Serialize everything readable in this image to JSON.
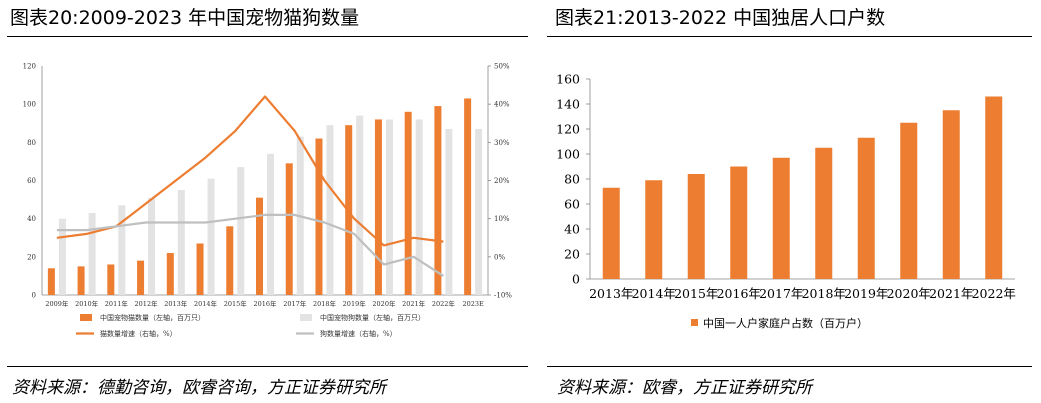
{
  "left": {
    "title": "图表20:2009-2023 年中国宠物猫狗数量",
    "source": "资料来源：德勤咨询，欧睿咨询，方正证券研究所",
    "chart_data": {
      "type": "bar",
      "categories": [
        "2009年",
        "2010年",
        "2011年",
        "2012年",
        "2013年",
        "2014年",
        "2015年",
        "2016年",
        "2017年",
        "2018年",
        "2019年",
        "2020年",
        "2021年",
        "2022年",
        "2023E"
      ],
      "series": [
        {
          "name": "中国宠物猫数量（左轴，百万只）",
          "type": "bar",
          "axis": "left",
          "color": "#ed7d31",
          "values": [
            14,
            15,
            16,
            18,
            22,
            27,
            36,
            51,
            69,
            82,
            89,
            92,
            96,
            99,
            103
          ]
        },
        {
          "name": "中国宠物狗数量（左轴，百万只）",
          "type": "bar",
          "axis": "left",
          "color": "#e3e3e3",
          "values": [
            40,
            43,
            47,
            51,
            55,
            61,
            67,
            74,
            83,
            89,
            94,
            92,
            92,
            87,
            87
          ]
        },
        {
          "name": "猫数量增速（右轴，%）",
          "type": "line",
          "axis": "right",
          "color": "#ed7d31",
          "values": [
            5,
            6,
            8,
            14,
            20,
            26,
            33,
            42,
            33,
            20,
            10,
            3,
            5,
            4,
            null
          ]
        },
        {
          "name": "狗数量增速（右轴，%）",
          "type": "line",
          "axis": "right",
          "color": "#bfbfbf",
          "values": [
            7,
            7,
            8,
            9,
            9,
            9,
            10,
            11,
            11,
            9,
            6,
            -2,
            0,
            -5,
            null
          ]
        }
      ],
      "left_axis": {
        "min": 0,
        "max": 120,
        "ticks": [
          "0",
          "20",
          "40",
          "60",
          "80",
          "100",
          "120"
        ]
      },
      "right_axis": {
        "min": -10,
        "max": 50,
        "ticks": [
          "-10%",
          "0%",
          "10%",
          "20%",
          "30%",
          "40%",
          "50%"
        ]
      },
      "legend_position": "bottom"
    }
  },
  "right": {
    "title": "图表21:2013-2022 中国独居人口户数",
    "source": "资料来源：欧睿，方正证券研究所",
    "chart_data": {
      "type": "bar",
      "categories": [
        "2013年",
        "2014年",
        "2015年",
        "2016年",
        "2017年",
        "2018年",
        "2019年",
        "2020年",
        "2021年",
        "2022年"
      ],
      "series": [
        {
          "name": "中国一人户家庭户占数（百万户）",
          "color": "#ed7d31",
          "values": [
            73,
            79,
            84,
            90,
            97,
            105,
            113,
            125,
            135,
            146
          ]
        }
      ],
      "y_axis": {
        "min": 0,
        "max": 160,
        "ticks": [
          "0",
          "20",
          "40",
          "60",
          "80",
          "100",
          "120",
          "140",
          "160"
        ]
      },
      "legend_position": "bottom"
    }
  }
}
